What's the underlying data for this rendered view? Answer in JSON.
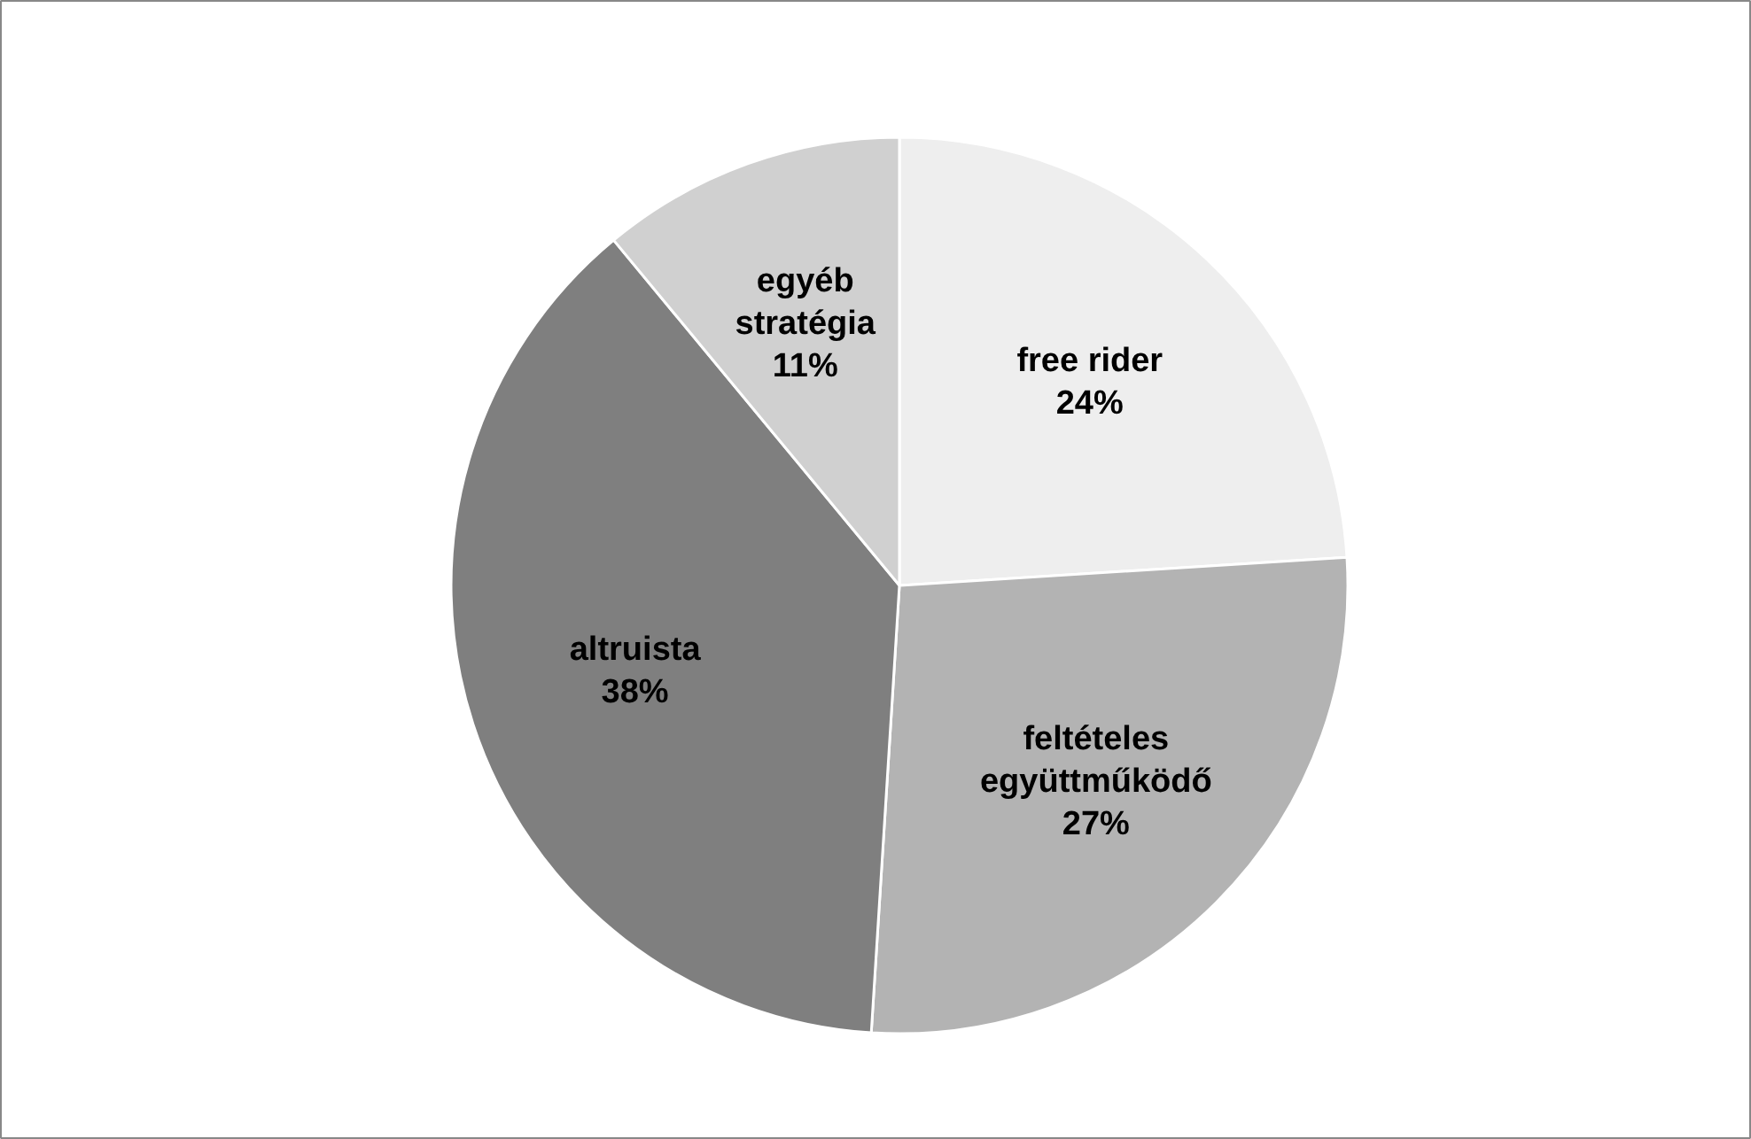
{
  "chart_data": {
    "type": "pie",
    "categories": [
      "free rider",
      "feltételes együttműködő",
      "altruista",
      "egyéb stratégia"
    ],
    "values": [
      24,
      27,
      38,
      11
    ],
    "value_labels": [
      "24%",
      "27%",
      "38%",
      "11%"
    ],
    "colors": [
      "#eeeeee",
      "#b3b3b3",
      "#7f7f7f",
      "#d0d0d0"
    ]
  }
}
